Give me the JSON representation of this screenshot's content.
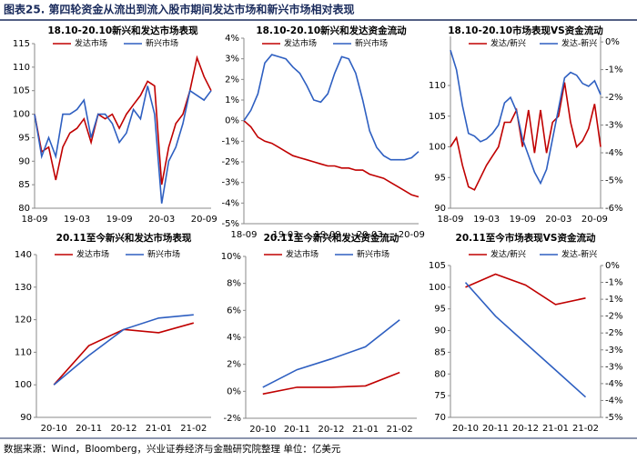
{
  "header": {
    "title": "图表25. 第四轮资金从流出到流入股市期间发达市场和新兴市场相对表现"
  },
  "chart_data": [
    {
      "type": "line",
      "title": "18.10-20.10新兴和发达市场表现",
      "categories": [
        "18-09",
        null,
        null,
        null,
        null,
        null,
        "19-03",
        null,
        null,
        null,
        null,
        null,
        "19-09",
        null,
        null,
        null,
        null,
        null,
        "20-03",
        null,
        null,
        null,
        null,
        null,
        "20-09",
        null
      ],
      "series": [
        {
          "name": "发达市场",
          "color": "#c00000",
          "values": [
            100,
            92,
            93,
            86,
            93,
            96,
            97,
            99,
            94,
            100,
            99,
            100,
            97,
            100,
            102,
            104,
            107,
            106,
            85,
            93,
            98,
            100,
            105,
            112,
            108,
            105
          ]
        },
        {
          "name": "新兴市场",
          "color": "#2e5fc1",
          "values": [
            100,
            91,
            95,
            91,
            100,
            100,
            101,
            103,
            95,
            100,
            100,
            98,
            94,
            96,
            101,
            99,
            106,
            100,
            81,
            90,
            93,
            98,
            105,
            104,
            103,
            105
          ]
        }
      ],
      "ylim": [
        80,
        115
      ],
      "yticks": [
        80,
        85,
        90,
        95,
        100,
        105,
        110,
        115
      ]
    },
    {
      "type": "line",
      "title": "18.10-20.10新兴和发达资金流动",
      "categories": [
        "18-09",
        null,
        null,
        null,
        null,
        null,
        "19-03",
        null,
        null,
        null,
        null,
        null,
        "19-09",
        null,
        null,
        null,
        null,
        null,
        "20-03",
        null,
        null,
        null,
        null,
        null,
        "20-09",
        null
      ],
      "series": [
        {
          "name": "发达市场",
          "color": "#c00000",
          "values": [
            0,
            -0.3,
            -0.8,
            -1.0,
            -1.1,
            -1.3,
            -1.5,
            -1.7,
            -1.8,
            -1.9,
            -2.0,
            -2.1,
            -2.2,
            -2.2,
            -2.3,
            -2.3,
            -2.4,
            -2.4,
            -2.6,
            -2.7,
            -2.8,
            -3.0,
            -3.2,
            -3.4,
            -3.6,
            -3.7
          ]
        },
        {
          "name": "新兴市场",
          "color": "#2e5fc1",
          "values": [
            0,
            0.5,
            1.3,
            2.8,
            3.2,
            3.1,
            3.0,
            2.6,
            2.3,
            1.7,
            1.0,
            0.9,
            1.3,
            2.3,
            3.1,
            3.0,
            2.3,
            1.0,
            -0.5,
            -1.3,
            -1.7,
            -1.9,
            -1.9,
            -1.9,
            -1.8,
            -1.5
          ]
        }
      ],
      "ylim": [
        -5,
        4
      ],
      "yticks": [
        {
          "value": -5,
          "label": "-5%"
        },
        {
          "value": -4,
          "label": "-4%"
        },
        {
          "value": -3,
          "label": "-3%"
        },
        {
          "value": -2,
          "label": "-2%"
        },
        {
          "value": -1,
          "label": "-1%"
        },
        {
          "value": 0,
          "label": "0%"
        },
        {
          "value": 1,
          "label": "1%"
        },
        {
          "value": 2,
          "label": "2%"
        },
        {
          "value": 3,
          "label": "3%"
        },
        {
          "value": 4,
          "label": "4%"
        }
      ]
    },
    {
      "type": "line",
      "title": "18.10-20.10市场表现VS资金流动",
      "categories": [
        "18-09",
        null,
        null,
        null,
        null,
        null,
        "19-03",
        null,
        null,
        null,
        null,
        null,
        "19-09",
        null,
        null,
        null,
        null,
        null,
        "20-03",
        null,
        null,
        null,
        null,
        null,
        "20-09",
        null
      ],
      "series": [
        {
          "name": "发达/新兴",
          "color": "#c00000",
          "values": [
            100,
            101.5,
            97,
            93.5,
            93,
            95,
            97,
            98.5,
            100,
            104,
            104,
            106,
            100,
            106,
            99,
            106,
            99,
            104,
            105,
            110.5,
            104,
            100,
            101,
            103,
            107,
            100
          ]
        },
        {
          "name": "发达-新兴",
          "color": "#2e5fc1",
          "axis": "y2",
          "values": [
            -0.3,
            -1.0,
            -2.3,
            -3.3,
            -3.4,
            -3.6,
            -3.5,
            -3.3,
            -3.0,
            -2.2,
            -2.0,
            -2.5,
            -3.5,
            -4.1,
            -4.7,
            -5.1,
            -4.6,
            -3.5,
            -2.4,
            -1.3,
            -1.1,
            -1.2,
            -1.5,
            -1.6,
            -1.4,
            -1.9
          ]
        }
      ],
      "ylim": [
        90,
        118
      ],
      "yticks": [
        90,
        95,
        100,
        105,
        110
      ],
      "y2lim": [
        -6,
        0.2
      ],
      "y2ticks": [
        {
          "value": -6,
          "label": "-6%"
        },
        {
          "value": -5,
          "label": "-5%"
        },
        {
          "value": -4,
          "label": "-4%"
        },
        {
          "value": -3,
          "label": "-3%"
        },
        {
          "value": -2,
          "label": "-2%"
        },
        {
          "value": -1,
          "label": "-1%"
        },
        {
          "value": 0,
          "label": "0%"
        }
      ]
    },
    {
      "type": "line",
      "title": "20.11至今新兴和发达市场表现",
      "categories": [
        "20-10",
        "20-11",
        "20-12",
        "21-01",
        "21-02"
      ],
      "series": [
        {
          "name": "发达市场",
          "color": "#c00000",
          "values": [
            100,
            112,
            117,
            116,
            119
          ]
        },
        {
          "name": "新兴市场",
          "color": "#2e5fc1",
          "values": [
            100,
            109,
            117,
            120.5,
            121.5
          ]
        }
      ],
      "ylim": [
        90,
        140
      ],
      "yticks": [
        90,
        100,
        110,
        120,
        130,
        140
      ]
    },
    {
      "type": "line",
      "title": "20.11至今新兴和发达资金流动",
      "categories": [
        "20-10",
        "20-11",
        "20-12",
        "21-01",
        "21-02"
      ],
      "series": [
        {
          "name": "发达市场",
          "color": "#c00000",
          "values": [
            -0.2,
            0.3,
            0.3,
            0.4,
            1.4
          ]
        },
        {
          "name": "新兴市场",
          "color": "#2e5fc1",
          "values": [
            0.3,
            1.6,
            2.4,
            3.3,
            5.3
          ]
        }
      ],
      "ylim": [
        -2,
        10
      ],
      "yticks": [
        {
          "value": -2,
          "label": "-2%"
        },
        {
          "value": 0,
          "label": "0%"
        },
        {
          "value": 2,
          "label": "2%"
        },
        {
          "value": 4,
          "label": "4%"
        },
        {
          "value": 6,
          "label": "6%"
        },
        {
          "value": 8,
          "label": "8%"
        },
        {
          "value": 10,
          "label": "10%"
        }
      ]
    },
    {
      "type": "line",
      "title": "20.11至今市场表现VS资金流动",
      "categories": [
        "20-10",
        "20-11",
        "20-12",
        "21-01",
        "21-02"
      ],
      "series": [
        {
          "name": "发达/新兴",
          "color": "#c00000",
          "values": [
            100,
            103,
            100.5,
            96,
            97.5
          ]
        },
        {
          "name": "发达-新兴",
          "color": "#2e5fc1",
          "axis": "y2",
          "values": [
            -0.5,
            -1.5,
            -2.3,
            -3.1,
            -3.9
          ]
        }
      ],
      "ylim": [
        70,
        105
      ],
      "yticks": [
        70,
        75,
        80,
        85,
        90,
        95,
        100,
        105
      ],
      "y2lim": [
        -4.5,
        0
      ],
      "y2ticks": [
        {
          "value": -4.5,
          "label": "-5%"
        },
        {
          "value": -4,
          "label": "-4%"
        },
        {
          "value": -3.5,
          "label": "-4%"
        },
        {
          "value": -3,
          "label": "-3%"
        },
        {
          "value": -2.5,
          "label": "-3%"
        },
        {
          "value": -2,
          "label": "-2%"
        },
        {
          "value": -1.5,
          "label": "-2%"
        },
        {
          "value": -1,
          "label": "-1%"
        },
        {
          "value": -0.5,
          "label": "-1%"
        },
        {
          "value": 0,
          "label": "0%"
        }
      ]
    }
  ],
  "footer": {
    "source": "数据来源：Wind，Bloomberg，兴业证券经济与金融研究院整理   单位：亿美元"
  }
}
